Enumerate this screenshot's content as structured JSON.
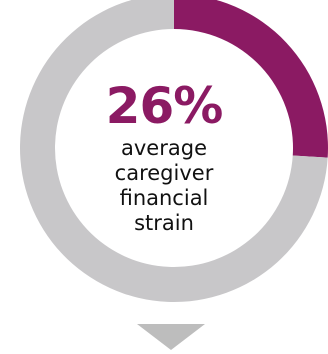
{
  "chart_data": {
    "type": "pie",
    "style": "donut",
    "values": [
      26,
      74
    ],
    "highlight_value": "26%",
    "caption_lines": [
      "average",
      "caregiver",
      "financial",
      "strain"
    ]
  },
  "colors": {
    "highlight": "#8b1a63",
    "remainder": "#c8c7c9",
    "caption": "#111111",
    "arrow": "#bdbdbd"
  },
  "icons": {
    "down_arrow": "triangle-down-icon"
  }
}
